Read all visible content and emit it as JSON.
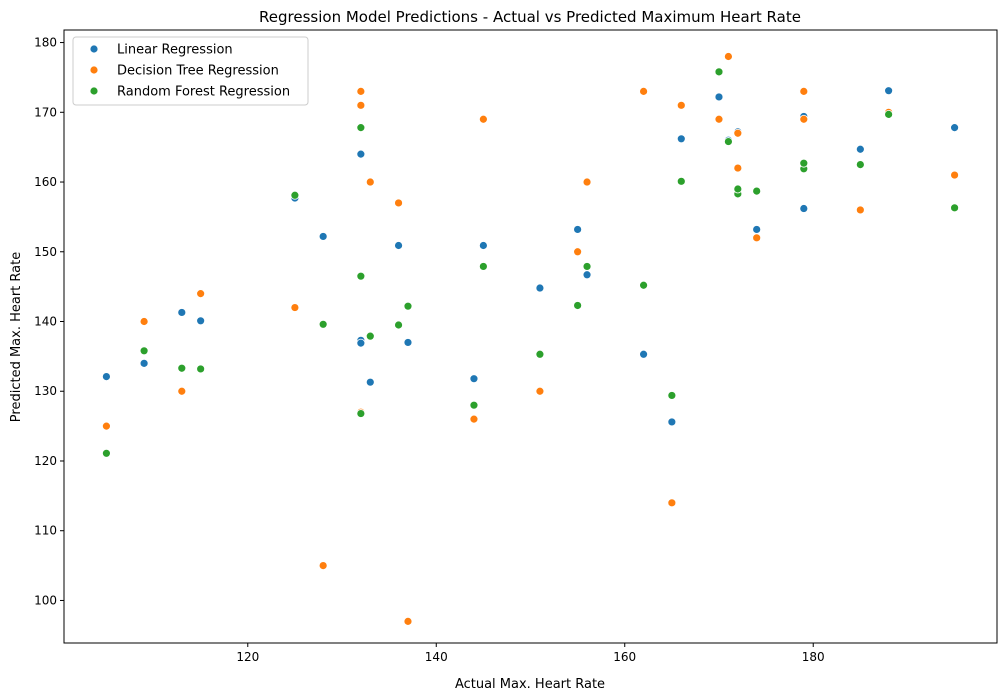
{
  "chart_data": {
    "type": "scatter",
    "title": "Regression Model Predictions - Actual vs Predicted Maximum Heart Rate",
    "xlabel": "Actual Max. Heart Rate",
    "ylabel": "Predicted Max. Heart Rate",
    "xlim": [
      100.5,
      199.5
    ],
    "ylim": [
      93.9,
      181.8
    ],
    "xticks": [
      120,
      140,
      160,
      180
    ],
    "yticks": [
      100,
      110,
      120,
      130,
      140,
      150,
      160,
      170,
      180
    ],
    "grid": false,
    "legend_position": "upper left",
    "series": [
      {
        "name": "Linear Regression",
        "color": "#1f77b4",
        "points": [
          [
            105,
            132.1
          ],
          [
            109,
            134
          ],
          [
            113,
            141.3
          ],
          [
            115,
            140.1
          ],
          [
            125,
            157.7
          ],
          [
            128,
            152.2
          ],
          [
            132,
            164
          ],
          [
            132,
            137.3
          ],
          [
            132,
            136.9
          ],
          [
            133,
            131.3
          ],
          [
            136,
            150.9
          ],
          [
            137,
            137
          ],
          [
            144,
            131.8
          ],
          [
            145,
            150.9
          ],
          [
            151,
            144.8
          ],
          [
            155,
            153.2
          ],
          [
            156,
            146.7
          ],
          [
            162,
            135.3
          ],
          [
            165,
            125.6
          ],
          [
            166,
            166.2
          ],
          [
            170,
            172.2
          ],
          [
            171,
            166
          ],
          [
            172,
            167.2
          ],
          [
            174,
            153.2
          ],
          [
            179,
            156.2
          ],
          [
            179,
            169.4
          ],
          [
            185,
            164.7
          ],
          [
            188,
            173.1
          ],
          [
            195,
            167.8
          ]
        ]
      },
      {
        "name": "Decision Tree Regression",
        "color": "#ff7f0e",
        "points": [
          [
            105,
            125
          ],
          [
            109,
            140
          ],
          [
            113,
            130
          ],
          [
            115,
            144
          ],
          [
            125,
            142
          ],
          [
            128,
            105
          ],
          [
            132,
            173
          ],
          [
            132,
            171
          ],
          [
            132,
            127
          ],
          [
            133,
            160
          ],
          [
            136,
            157
          ],
          [
            137,
            97
          ],
          [
            144,
            126
          ],
          [
            145,
            169
          ],
          [
            151,
            130
          ],
          [
            155,
            150
          ],
          [
            156,
            160
          ],
          [
            162,
            173
          ],
          [
            165,
            114
          ],
          [
            166,
            171
          ],
          [
            170,
            169
          ],
          [
            171,
            178
          ],
          [
            172,
            167
          ],
          [
            172,
            162
          ],
          [
            174,
            152
          ],
          [
            179,
            173
          ],
          [
            179,
            169
          ],
          [
            185,
            156
          ],
          [
            188,
            170
          ],
          [
            195,
            161
          ]
        ]
      },
      {
        "name": "Random Forest Regression",
        "color": "#2ca02c",
        "points": [
          [
            105,
            121.1
          ],
          [
            109,
            135.8
          ],
          [
            113,
            133.3
          ],
          [
            115,
            133.2
          ],
          [
            125,
            158.1
          ],
          [
            128,
            139.6
          ],
          [
            132,
            167.8
          ],
          [
            132,
            146.5
          ],
          [
            132,
            126.8
          ],
          [
            133,
            137.9
          ],
          [
            136,
            139.5
          ],
          [
            137,
            142.2
          ],
          [
            144,
            128
          ],
          [
            145,
            147.9
          ],
          [
            151,
            135.3
          ],
          [
            155,
            142.3
          ],
          [
            156,
            147.9
          ],
          [
            162,
            145.2
          ],
          [
            165,
            129.4
          ],
          [
            166,
            160.1
          ],
          [
            170,
            175.8
          ],
          [
            171,
            165.8
          ],
          [
            172,
            158.3
          ],
          [
            172,
            159
          ],
          [
            174,
            158.7
          ],
          [
            179,
            161.9
          ],
          [
            179,
            162.7
          ],
          [
            185,
            162.5
          ],
          [
            188,
            169.7
          ],
          [
            195,
            156.3
          ]
        ]
      }
    ]
  }
}
